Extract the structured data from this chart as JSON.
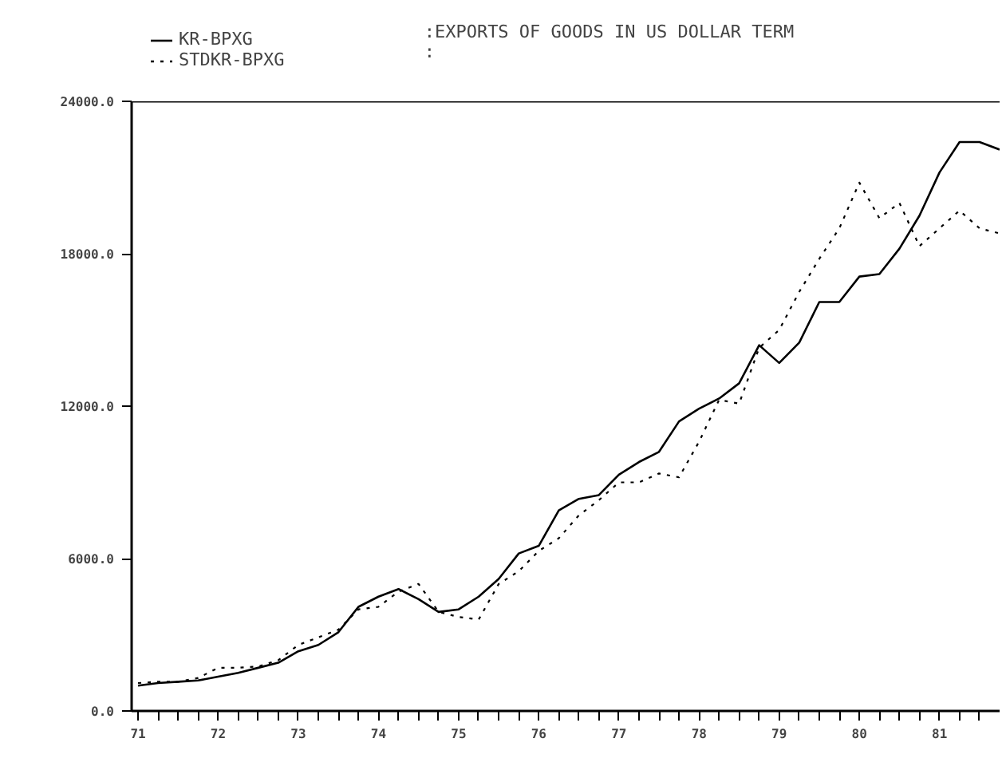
{
  "chart_data": {
    "type": "line",
    "title": ":EXPORTS OF GOODS IN US DOLLAR TERM",
    "annotations": [
      ":"
    ],
    "x": [
      71.0,
      71.25,
      71.5,
      71.75,
      72.0,
      72.25,
      72.5,
      72.75,
      73.0,
      73.25,
      73.5,
      73.75,
      74.0,
      74.25,
      74.5,
      74.75,
      75.0,
      75.25,
      75.5,
      75.75,
      76.0,
      76.25,
      76.5,
      76.75,
      77.0,
      77.25,
      77.5,
      77.75,
      78.0,
      78.25,
      78.5,
      78.75,
      79.0,
      79.25,
      79.5,
      79.75,
      80.0,
      80.25,
      80.5,
      80.75,
      81.0,
      81.25,
      81.5,
      81.75
    ],
    "series": [
      {
        "name": "KR-BPXG",
        "color": "#000000",
        "line_style": "solid",
        "values": [
          1000,
          1100,
          1150,
          1200,
          1350,
          1500,
          1700,
          1900,
          2350,
          2600,
          3100,
          4100,
          4500,
          4800,
          4400,
          3900,
          4000,
          4500,
          5200,
          6200,
          6500,
          7900,
          8350,
          8500,
          9300,
          9800,
          10200,
          11400,
          11900,
          12300,
          12900,
          14400,
          13700,
          14500,
          16100,
          16100,
          17100,
          17200,
          18200,
          19500,
          21200,
          22400,
          22400,
          22100
        ]
      },
      {
        "name": "STDKR-BPXG",
        "color": "#000000",
        "line_style": "dotted",
        "values": [
          1100,
          1150,
          1150,
          1300,
          1700,
          1700,
          1750,
          2000,
          2600,
          2900,
          3200,
          4000,
          4100,
          4700,
          5000,
          3900,
          3700,
          3600,
          5000,
          5500,
          6300,
          6800,
          7700,
          8300,
          9000,
          9000,
          9350,
          9200,
          10600,
          12250,
          12100,
          14300,
          15000,
          16500,
          17800,
          19000,
          20800,
          19400,
          20000,
          18300,
          19000,
          19700,
          19000,
          18800
        ]
      }
    ],
    "xlim": [
      70.92,
      81.75
    ],
    "ylim": [
      0,
      24000
    ],
    "xticks": [
      71,
      {
        "value": 71.25,
        "label": null
      },
      {
        "value": 71.5,
        "label": null
      },
      {
        "value": 71.75,
        "label": null
      },
      72,
      {
        "value": 72.25,
        "label": null
      },
      {
        "value": 72.5,
        "label": null
      },
      {
        "value": 72.75,
        "label": null
      },
      73,
      {
        "value": 73.25,
        "label": null
      },
      {
        "value": 73.5,
        "label": null
      },
      {
        "value": 73.75,
        "label": null
      },
      74,
      {
        "value": 74.25,
        "label": null
      },
      {
        "value": 74.5,
        "label": null
      },
      {
        "value": 74.75,
        "label": null
      },
      75,
      {
        "value": 75.25,
        "label": null
      },
      {
        "value": 75.5,
        "label": null
      },
      {
        "value": 75.75,
        "label": null
      },
      76,
      {
        "value": 76.25,
        "label": null
      },
      {
        "value": 76.5,
        "label": null
      },
      {
        "value": 76.75,
        "label": null
      },
      77,
      {
        "value": 77.25,
        "label": null
      },
      {
        "value": 77.5,
        "label": null
      },
      {
        "value": 77.75,
        "label": null
      },
      78,
      {
        "value": 78.25,
        "label": null
      },
      {
        "value": 78.5,
        "label": null
      },
      {
        "value": 78.75,
        "label": null
      },
      79,
      {
        "value": 79.25,
        "label": null
      },
      {
        "value": 79.5,
        "label": null
      },
      {
        "value": 79.75,
        "label": null
      },
      80,
      {
        "value": 80.25,
        "label": null
      },
      {
        "value": 80.5,
        "label": null
      },
      {
        "value": 80.75,
        "label": null
      },
      81,
      {
        "value": 81.25,
        "label": null
      },
      {
        "value": 81.5,
        "label": null
      }
    ],
    "yticks": [
      {
        "value": 0,
        "label": "0.0"
      },
      {
        "value": 6000,
        "label": "6000.0"
      },
      {
        "value": 12000,
        "label": "12000.0"
      },
      {
        "value": 18000,
        "label": "18000.0"
      },
      {
        "value": 24000,
        "label": "24000.0"
      }
    ],
    "grid": false,
    "legend": "top left",
    "marker": "none"
  }
}
